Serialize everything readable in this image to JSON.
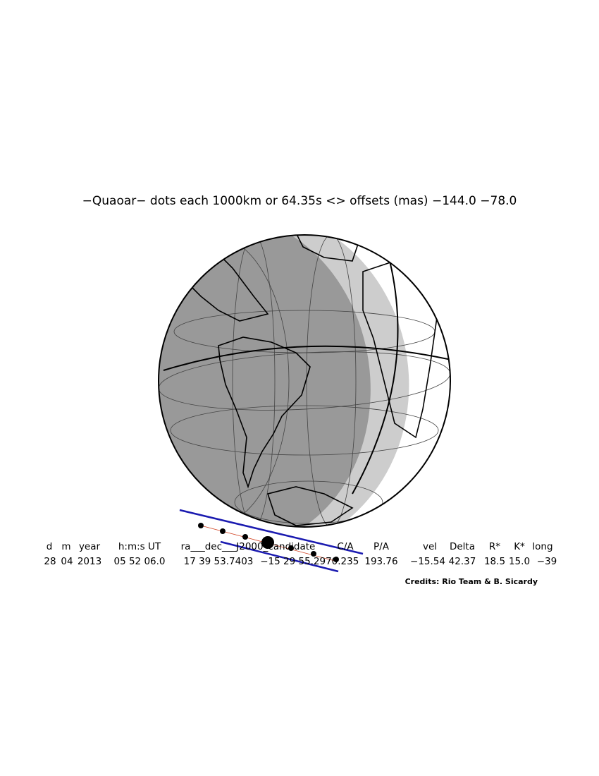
{
  "title": "−Quaoar− dots each 1000km or 64.35s <> offsets (mas) −144.0  −78.0",
  "table": {
    "headers": [
      "d",
      "m",
      "year",
      "h:m:s UT",
      "ra___dec___J2000_candidate",
      "C/A",
      "P/A",
      "vel",
      "Delta",
      "R*",
      "K*",
      "long"
    ],
    "values": [
      "28",
      "04",
      "2013",
      "05 52 06.0",
      "17 39 53.7403",
      "−15 29 55.297",
      "0.235",
      "193.76",
      "−15.54",
      "42.37",
      "18.5",
      "15.0",
      "−39"
    ]
  },
  "credits": "Credits: Rio Team & B. Sicardy"
}
